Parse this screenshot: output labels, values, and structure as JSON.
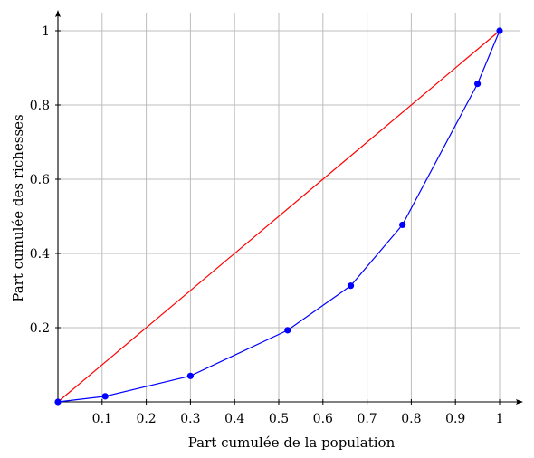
{
  "chart_data": {
    "type": "line",
    "title": "",
    "xlabel": "Part cumulée de la population",
    "ylabel": "Part cumulée des richesses",
    "xlim": [
      0,
      1
    ],
    "ylim": [
      0,
      1
    ],
    "grid": true,
    "x_ticks": [
      {
        "value": 0.1,
        "label": "0.1"
      },
      {
        "value": 0.2,
        "label": "0.2"
      },
      {
        "value": 0.3,
        "label": "0.3"
      },
      {
        "value": 0.4,
        "label": "0.4"
      },
      {
        "value": 0.5,
        "label": "0.5"
      },
      {
        "value": 0.6,
        "label": "0.6"
      },
      {
        "value": 0.7,
        "label": "0.7"
      },
      {
        "value": 0.8,
        "label": "0.8"
      },
      {
        "value": 0.9,
        "label": "0.9"
      },
      {
        "value": 1,
        "label": "1"
      }
    ],
    "y_ticks": [
      {
        "value": 0.2,
        "label": "0.2"
      },
      {
        "value": 0.4,
        "label": "0.4"
      },
      {
        "value": 0.6,
        "label": "0.6"
      },
      {
        "value": 0.8,
        "label": "0.8"
      },
      {
        "value": 1,
        "label": "1"
      }
    ],
    "series": [
      {
        "color": "#0000ff",
        "markers": true,
        "x": [
          0,
          0.107,
          0.3,
          0.52,
          0.663,
          0.78,
          0.95,
          1
        ],
        "y": [
          0,
          0.015,
          0.07,
          0.193,
          0.313,
          0.477,
          0.857,
          1
        ]
      },
      {
        "color": "#ff0000",
        "markers": false,
        "x": [
          0,
          1
        ],
        "y": [
          0,
          1
        ]
      }
    ]
  }
}
